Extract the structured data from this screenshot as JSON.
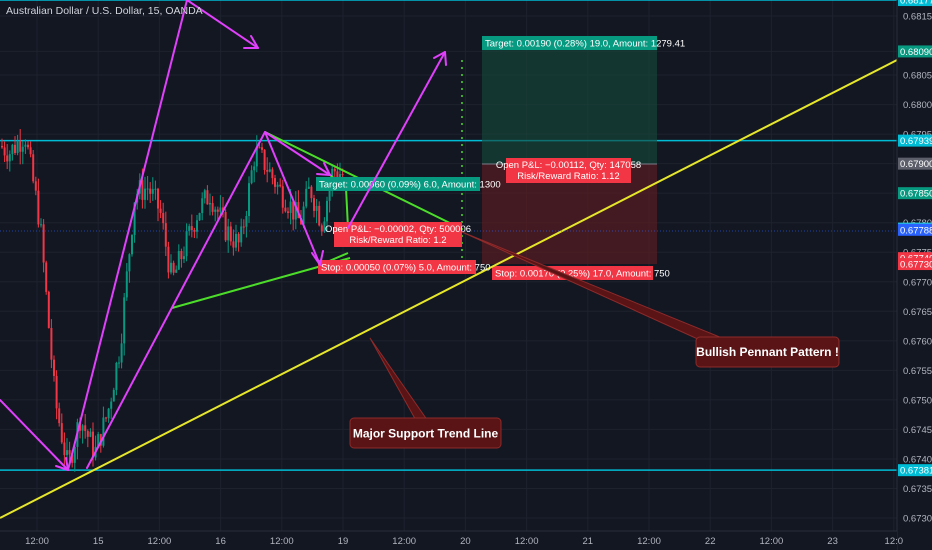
{
  "chart_data": {
    "type": "candlestick",
    "title": "Australian Dollar / U.S. Dollar, 15, OANDA",
    "ylim": [
      0.67295,
      0.68195
    ],
    "y_ticks": [
      "0.68150",
      "0.68090",
      "0.68050",
      "0.68000",
      "0.67950",
      "0.67900",
      "0.67850",
      "0.67800",
      "0.67750",
      "0.67700",
      "0.67650",
      "0.67600",
      "0.67550",
      "0.67500",
      "0.67450",
      "0.67400",
      "0.67350",
      "0.67300"
    ],
    "x_ticks": [
      "12:00",
      "15",
      "12:00",
      "16",
      "12:00",
      "19",
      "12:00",
      "20",
      "12:00",
      "21",
      "12:00",
      "22",
      "12:00",
      "23",
      "12:0"
    ],
    "grid": true,
    "price_tags": [
      {
        "text": "0.68177",
        "value": 0.68177,
        "color": "#00bcd4"
      },
      {
        "text": "0.68090",
        "value": 0.6809,
        "color": "#089981"
      },
      {
        "text": "0.67939",
        "value": 0.67939,
        "color": "#00bcd4"
      },
      {
        "text": "0.67900",
        "value": 0.679,
        "color": "#5d606b"
      },
      {
        "text": "0.67850",
        "value": 0.6785,
        "color": "#089981"
      },
      {
        "text": "0.67790",
        "value": 0.6779,
        "color": "#26c6da"
      },
      {
        "text": "0.67788",
        "value": 0.67788,
        "color": "#2962ff"
      },
      {
        "text": "0.67740",
        "value": 0.6774,
        "color": "#f23645"
      },
      {
        "text": "0.67730",
        "value": 0.6773,
        "color": "#f23645"
      },
      {
        "text": "0.67381",
        "value": 0.67381,
        "color": "#00bcd4"
      }
    ],
    "horizontal_levels": [
      0.68177,
      0.67939,
      0.67381
    ],
    "positions": [
      {
        "target": "Target: 0.00190 (0.28%) 19.0, Amount: 1279.41",
        "pnl": "Open P&L: −0.00112, Qty: 147058",
        "ratio": "Risk/Reward Ratio: 1.12",
        "stop": "Stop: 0.00170 (0.25%) 17.0, Amount: 750"
      },
      {
        "target": "Target: 0.00060 (0.09%) 6.0, Amount: 1300",
        "pnl": "Open P&L: −0.00002, Qty: 500006",
        "ratio": "Risk/Reward Ratio: 1.2",
        "stop": "Stop: 0.00050 (0.07%) 5.0, Amount: 750"
      }
    ],
    "annotations": [
      {
        "text": "Bullish Pennant Pattern !"
      },
      {
        "text": "Major Support Trend Line"
      }
    ]
  },
  "colors": {
    "background": "#131722",
    "up": "#089981",
    "down": "#f23645",
    "level_line": "#00bcd4",
    "trend_line": "#e6e62b",
    "pennant": "#4cdc2a",
    "arrows": "#e040fb",
    "callout_fill": "#5a1416",
    "callout_border": "#8e2a2a"
  }
}
